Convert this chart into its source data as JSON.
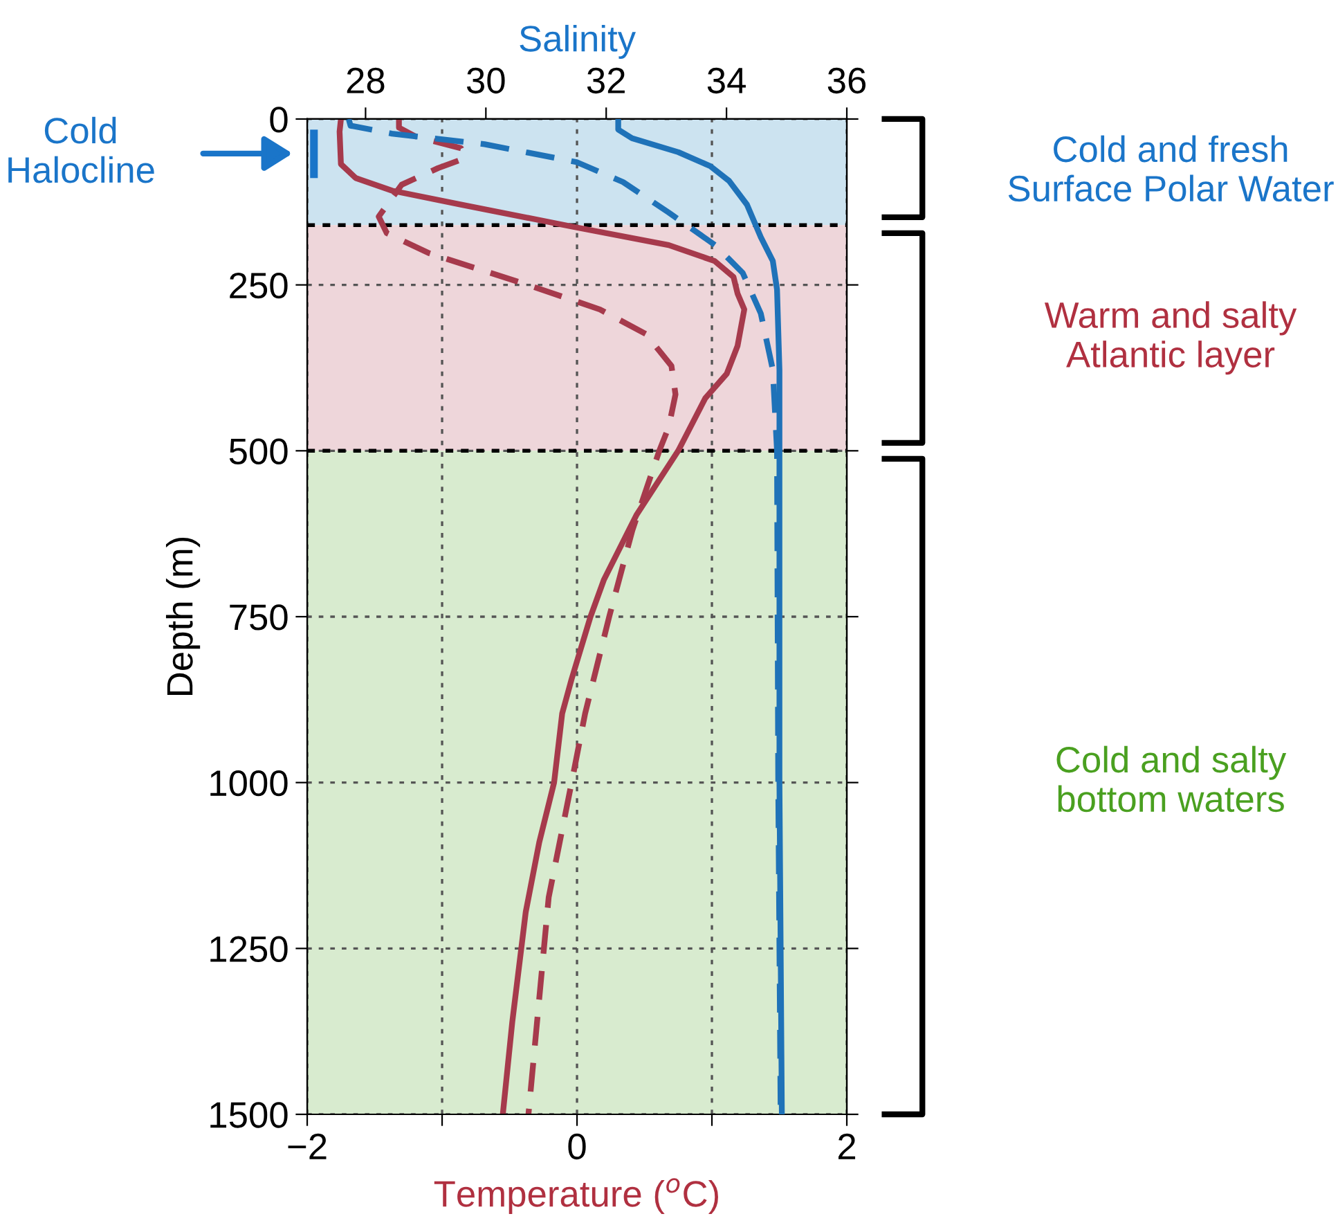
{
  "chart_data": {
    "type": "line",
    "xlabel": "Temperature ($^{o}$C)",
    "x2label": "Salinity",
    "ylabel": "Depth (m)",
    "xlim": [
      -2,
      2
    ],
    "xticks": [
      {
        "value": -2,
        "label": "−2"
      },
      {
        "value": -1,
        "label": null
      },
      0,
      {
        "value": 1,
        "label": null
      },
      2
    ],
    "x2lim": [
      27.03,
      36
    ],
    "x2ticks": [
      28,
      30,
      32,
      34,
      36
    ],
    "ylim": [
      1500,
      0
    ],
    "yticks": [
      0,
      250,
      500,
      750,
      1000,
      1250,
      1500
    ],
    "grid": true,
    "series": [
      {
        "color": "#a63a4c",
        "line_style": "solid",
        "x": [
          -1.75,
          -1.76,
          -1.75,
          -1.64,
          -1.37,
          -0.86,
          -0.04,
          0.68,
          1.02,
          1.16,
          1.19,
          1.24,
          1.19,
          1.11,
          0.95,
          0.75,
          0.44,
          0.2,
          0.1,
          -0.04,
          -0.11,
          -0.17,
          -0.28,
          -0.38,
          -0.48,
          -0.55
        ],
        "values": [
          0,
          19,
          68,
          89,
          108,
          129,
          162,
          190,
          214,
          238,
          263,
          287,
          342,
          384,
          421,
          500,
          597,
          694,
          750,
          844,
          896,
          1000,
          1090,
          1195,
          1361,
          1500
        ]
      },
      {
        "color": "#a63a4c",
        "line_style": "dashed",
        "x": [
          -1.32,
          -1.32,
          -1.2,
          -0.86,
          -0.83,
          -1.03,
          -1.3,
          -1.47,
          -1.41,
          -1.1,
          -0.35,
          0.17,
          0.51,
          0.7,
          0.73,
          0.68,
          0.61,
          0.41,
          0.24,
          0.06,
          -0.04,
          -0.21,
          -0.36
        ],
        "values": [
          0,
          13,
          26,
          44,
          59,
          74,
          99,
          147,
          172,
          202,
          251,
          287,
          324,
          372,
          415,
          464,
          500,
          620,
          749,
          896,
          1000,
          1173,
          1500
        ]
      },
      {
        "axis": "x2",
        "color": "#1f72b8",
        "line_style": "solid",
        "x": [
          32.2,
          32.2,
          32.43,
          33.2,
          33.73,
          34.04,
          34.34,
          34.57,
          34.77,
          34.84,
          34.88,
          34.88,
          34.88,
          34.92
        ],
        "values": [
          0,
          16,
          29,
          50,
          71,
          93,
          129,
          178,
          214,
          257,
          378,
          500,
          1000,
          1500
        ]
      },
      {
        "axis": "x2",
        "color": "#1f72b8",
        "line_style": "dashed",
        "x": [
          27.72,
          27.75,
          28.44,
          29.98,
          31.51,
          32.28,
          33.04,
          33.81,
          34.27,
          34.57,
          34.77,
          34.84,
          34.86,
          34.9
        ],
        "values": [
          0,
          10,
          22,
          38,
          65,
          95,
          141,
          190,
          232,
          293,
          378,
          500,
          1000,
          1500
        ]
      },
      {
        "color": "#1a75c9",
        "line_style": "solid",
        "x": [
          -1.95,
          -1.95
        ],
        "values": [
          16,
          89
        ]
      }
    ],
    "bands": [
      {
        "axis": "y",
        "from": 0,
        "to": 160,
        "color": "#cce3f0"
      },
      {
        "axis": "y",
        "from": 160,
        "to": 500,
        "color": "#eed6da"
      },
      {
        "axis": "y",
        "from": 500,
        "to": 1500,
        "color": "#d8ebcf"
      }
    ],
    "ref_lines": [
      {
        "axis": "y",
        "value": 160,
        "color": "#000000",
        "line_style": "dotted"
      },
      {
        "axis": "y",
        "value": 500,
        "color": "#000000",
        "line_style": "dotted"
      }
    ],
    "annotations": [
      "Cold\nHalocline",
      "Cold and fresh\nSurface Polar Water",
      "Warm and salty\nAtlantic layer",
      "Cold and salty\nbottom waters"
    ]
  }
}
